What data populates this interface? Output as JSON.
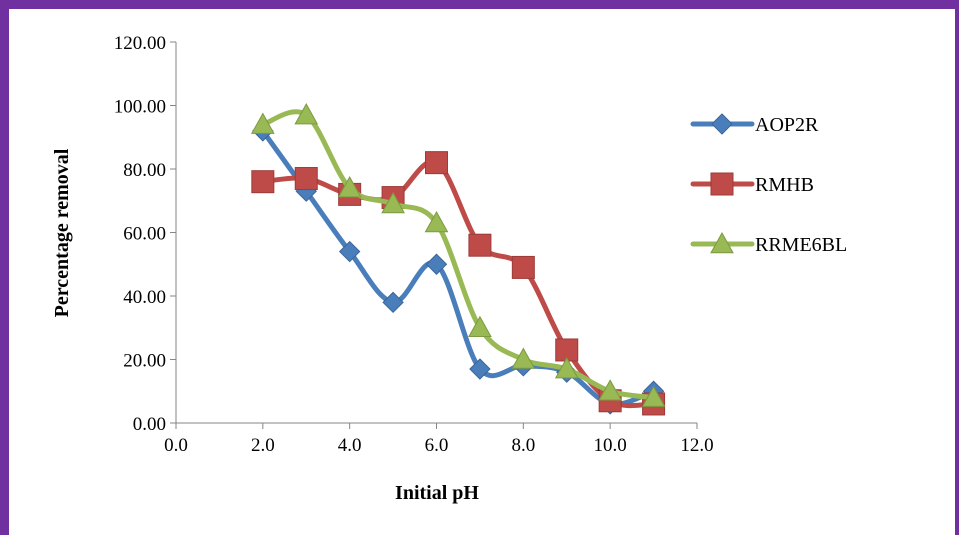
{
  "chart_data": {
    "type": "line",
    "xlabel": "Initial pH",
    "ylabel": "Percentage removal",
    "xlim": [
      0,
      12
    ],
    "ylim": [
      0,
      120
    ],
    "x_ticks": [
      "0.0",
      "2.0",
      "4.0",
      "6.0",
      "8.0",
      "10.0",
      "12.0"
    ],
    "y_ticks": [
      "0.00",
      "20.00",
      "40.00",
      "60.00",
      "80.00",
      "100.00",
      "120.00"
    ],
    "grid": false,
    "legend_position": "right",
    "x": [
      2,
      3,
      4,
      5,
      6,
      7,
      8,
      9,
      10,
      11
    ],
    "series": [
      {
        "name": "AOP2R",
        "color": "#4a7ebb",
        "marker": "diamond",
        "values": [
          92,
          73,
          54,
          38,
          50,
          17,
          18,
          16,
          6,
          10
        ]
      },
      {
        "name": "RMHB",
        "color": "#be4b48",
        "marker": "square",
        "values": [
          76,
          77,
          72,
          71,
          82,
          56,
          49,
          23,
          7,
          6
        ]
      },
      {
        "name": "RRME6BL",
        "color": "#98b954",
        "marker": "triangle",
        "values": [
          94,
          97,
          74,
          69,
          63,
          30,
          20,
          17,
          10,
          8
        ]
      }
    ]
  }
}
